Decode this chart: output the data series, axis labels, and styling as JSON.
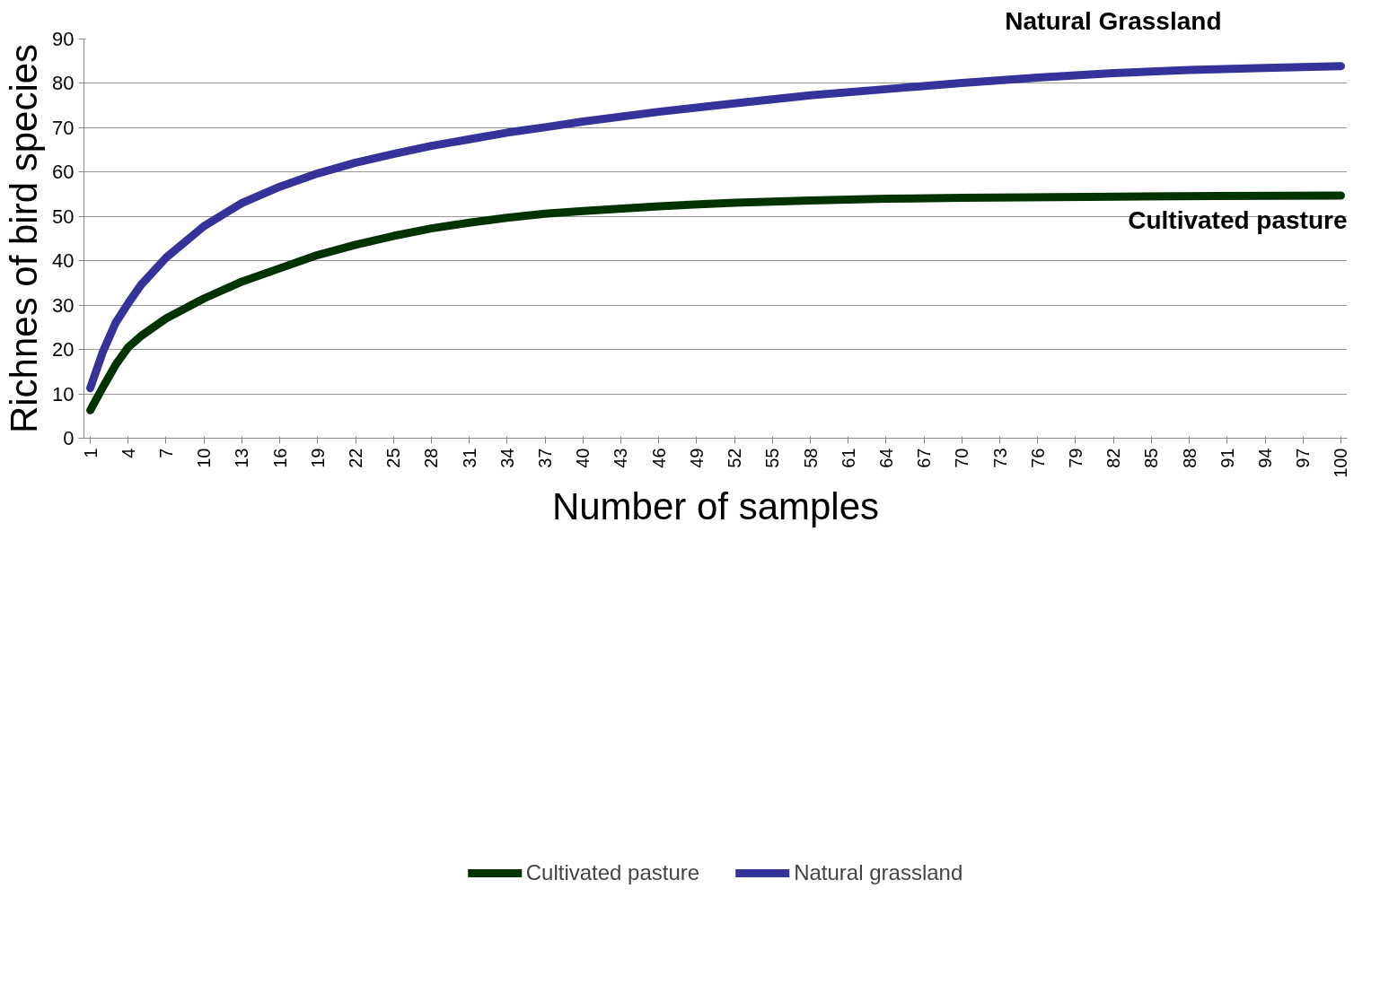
{
  "chart_data": {
    "type": "line",
    "xlabel": "Number of samples",
    "ylabel": "Richnes of bird species",
    "xlim": [
      0.5,
      100.5
    ],
    "xticks": [
      1,
      4,
      7,
      10,
      13,
      16,
      19,
      22,
      25,
      28,
      31,
      34,
      37,
      40,
      43,
      46,
      49,
      52,
      55,
      58,
      61,
      64,
      67,
      70,
      73,
      76,
      79,
      82,
      85,
      88,
      91,
      94,
      97,
      100
    ],
    "ylim": [
      0,
      90
    ],
    "yticks": [
      0,
      10,
      20,
      30,
      40,
      50,
      60,
      70,
      80,
      90
    ],
    "grid": "y",
    "legend": "bottom",
    "line_style": "solid",
    "annotations": [
      "Natural Grassland",
      "Cultivated pasture"
    ],
    "series": [
      {
        "name": "Cultivated pasture",
        "color": "#003300",
        "x": [
          1,
          2,
          3,
          4,
          5,
          7,
          10,
          13,
          16,
          19,
          22,
          25,
          28,
          31,
          34,
          37,
          40,
          46,
          52,
          58,
          64,
          70,
          80,
          90,
          100
        ],
        "values": [
          6.3,
          11.5,
          16.5,
          20.5,
          23,
          27,
          31.5,
          35.3,
          38.3,
          41.3,
          43.6,
          45.6,
          47.3,
          48.6,
          49.7,
          50.6,
          51.2,
          52.3,
          53.1,
          53.6,
          54.0,
          54.2,
          54.4,
          54.6,
          54.7
        ]
      },
      {
        "name": "Natural grassland",
        "color": "#333399",
        "x": [
          1,
          2,
          3,
          4,
          5,
          7,
          10,
          13,
          16,
          19,
          22,
          25,
          28,
          31,
          34,
          37,
          40,
          46,
          52,
          58,
          64,
          70,
          76,
          82,
          88,
          94,
          100
        ],
        "values": [
          11.3,
          19.5,
          26,
          30.4,
          34.5,
          40.7,
          47.8,
          53,
          56.7,
          59.7,
          62.1,
          64.1,
          65.9,
          67.4,
          68.9,
          70.1,
          71.4,
          73.6,
          75.5,
          77.3,
          78.7,
          80.1,
          81.3,
          82.3,
          83.0,
          83.5,
          83.9
        ]
      }
    ]
  }
}
